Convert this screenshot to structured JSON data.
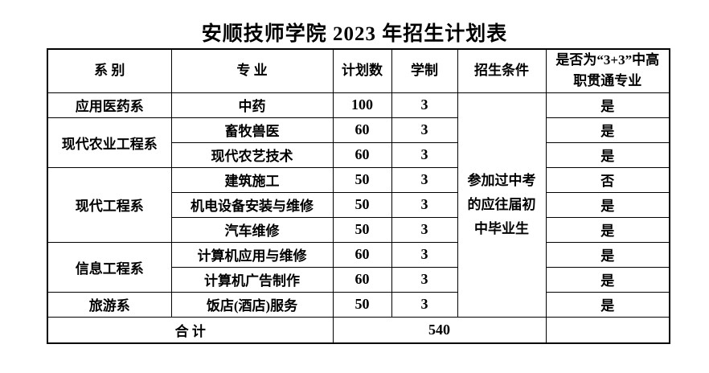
{
  "page": {
    "title": "安顺技师学院 2023 年招生计划表",
    "background_color": "#ffffff",
    "text_color": "#000000",
    "border_color": "#000000"
  },
  "table": {
    "headers": [
      "系 别",
      "专 业",
      "计划数",
      "学制",
      "招生条件",
      "是否为“3+3”中高职贯通专业"
    ],
    "admission_condition": "参加过中考的应往届初中毕业生",
    "departments": [
      {
        "name": "应用医药系",
        "majors": [
          {
            "major": "中药",
            "plan": "100",
            "years": "3",
            "is_3plus3": "是"
          }
        ]
      },
      {
        "name": "现代农业工程系",
        "majors": [
          {
            "major": "畜牧兽医",
            "plan": "60",
            "years": "3",
            "is_3plus3": "是"
          },
          {
            "major": "现代农艺技术",
            "plan": "60",
            "years": "3",
            "is_3plus3": "是"
          }
        ]
      },
      {
        "name": "现代工程系",
        "majors": [
          {
            "major": "建筑施工",
            "plan": "50",
            "years": "3",
            "is_3plus3": "否"
          },
          {
            "major": "机电设备安装与维修",
            "plan": "50",
            "years": "3",
            "is_3plus3": "是"
          },
          {
            "major": "汽车维修",
            "plan": "50",
            "years": "3",
            "is_3plus3": "是"
          }
        ]
      },
      {
        "name": "信息工程系",
        "majors": [
          {
            "major": "计算机应用与维修",
            "plan": "60",
            "years": "3",
            "is_3plus3": "是"
          },
          {
            "major": "计算机广告制作",
            "plan": "60",
            "years": "3",
            "is_3plus3": "是"
          }
        ]
      },
      {
        "name": "旅游系",
        "majors": [
          {
            "major": "饭店(酒店)服务",
            "plan": "50",
            "years": "3",
            "is_3plus3": "是"
          }
        ]
      }
    ],
    "footer": {
      "label": "合 计",
      "total": "540"
    }
  }
}
